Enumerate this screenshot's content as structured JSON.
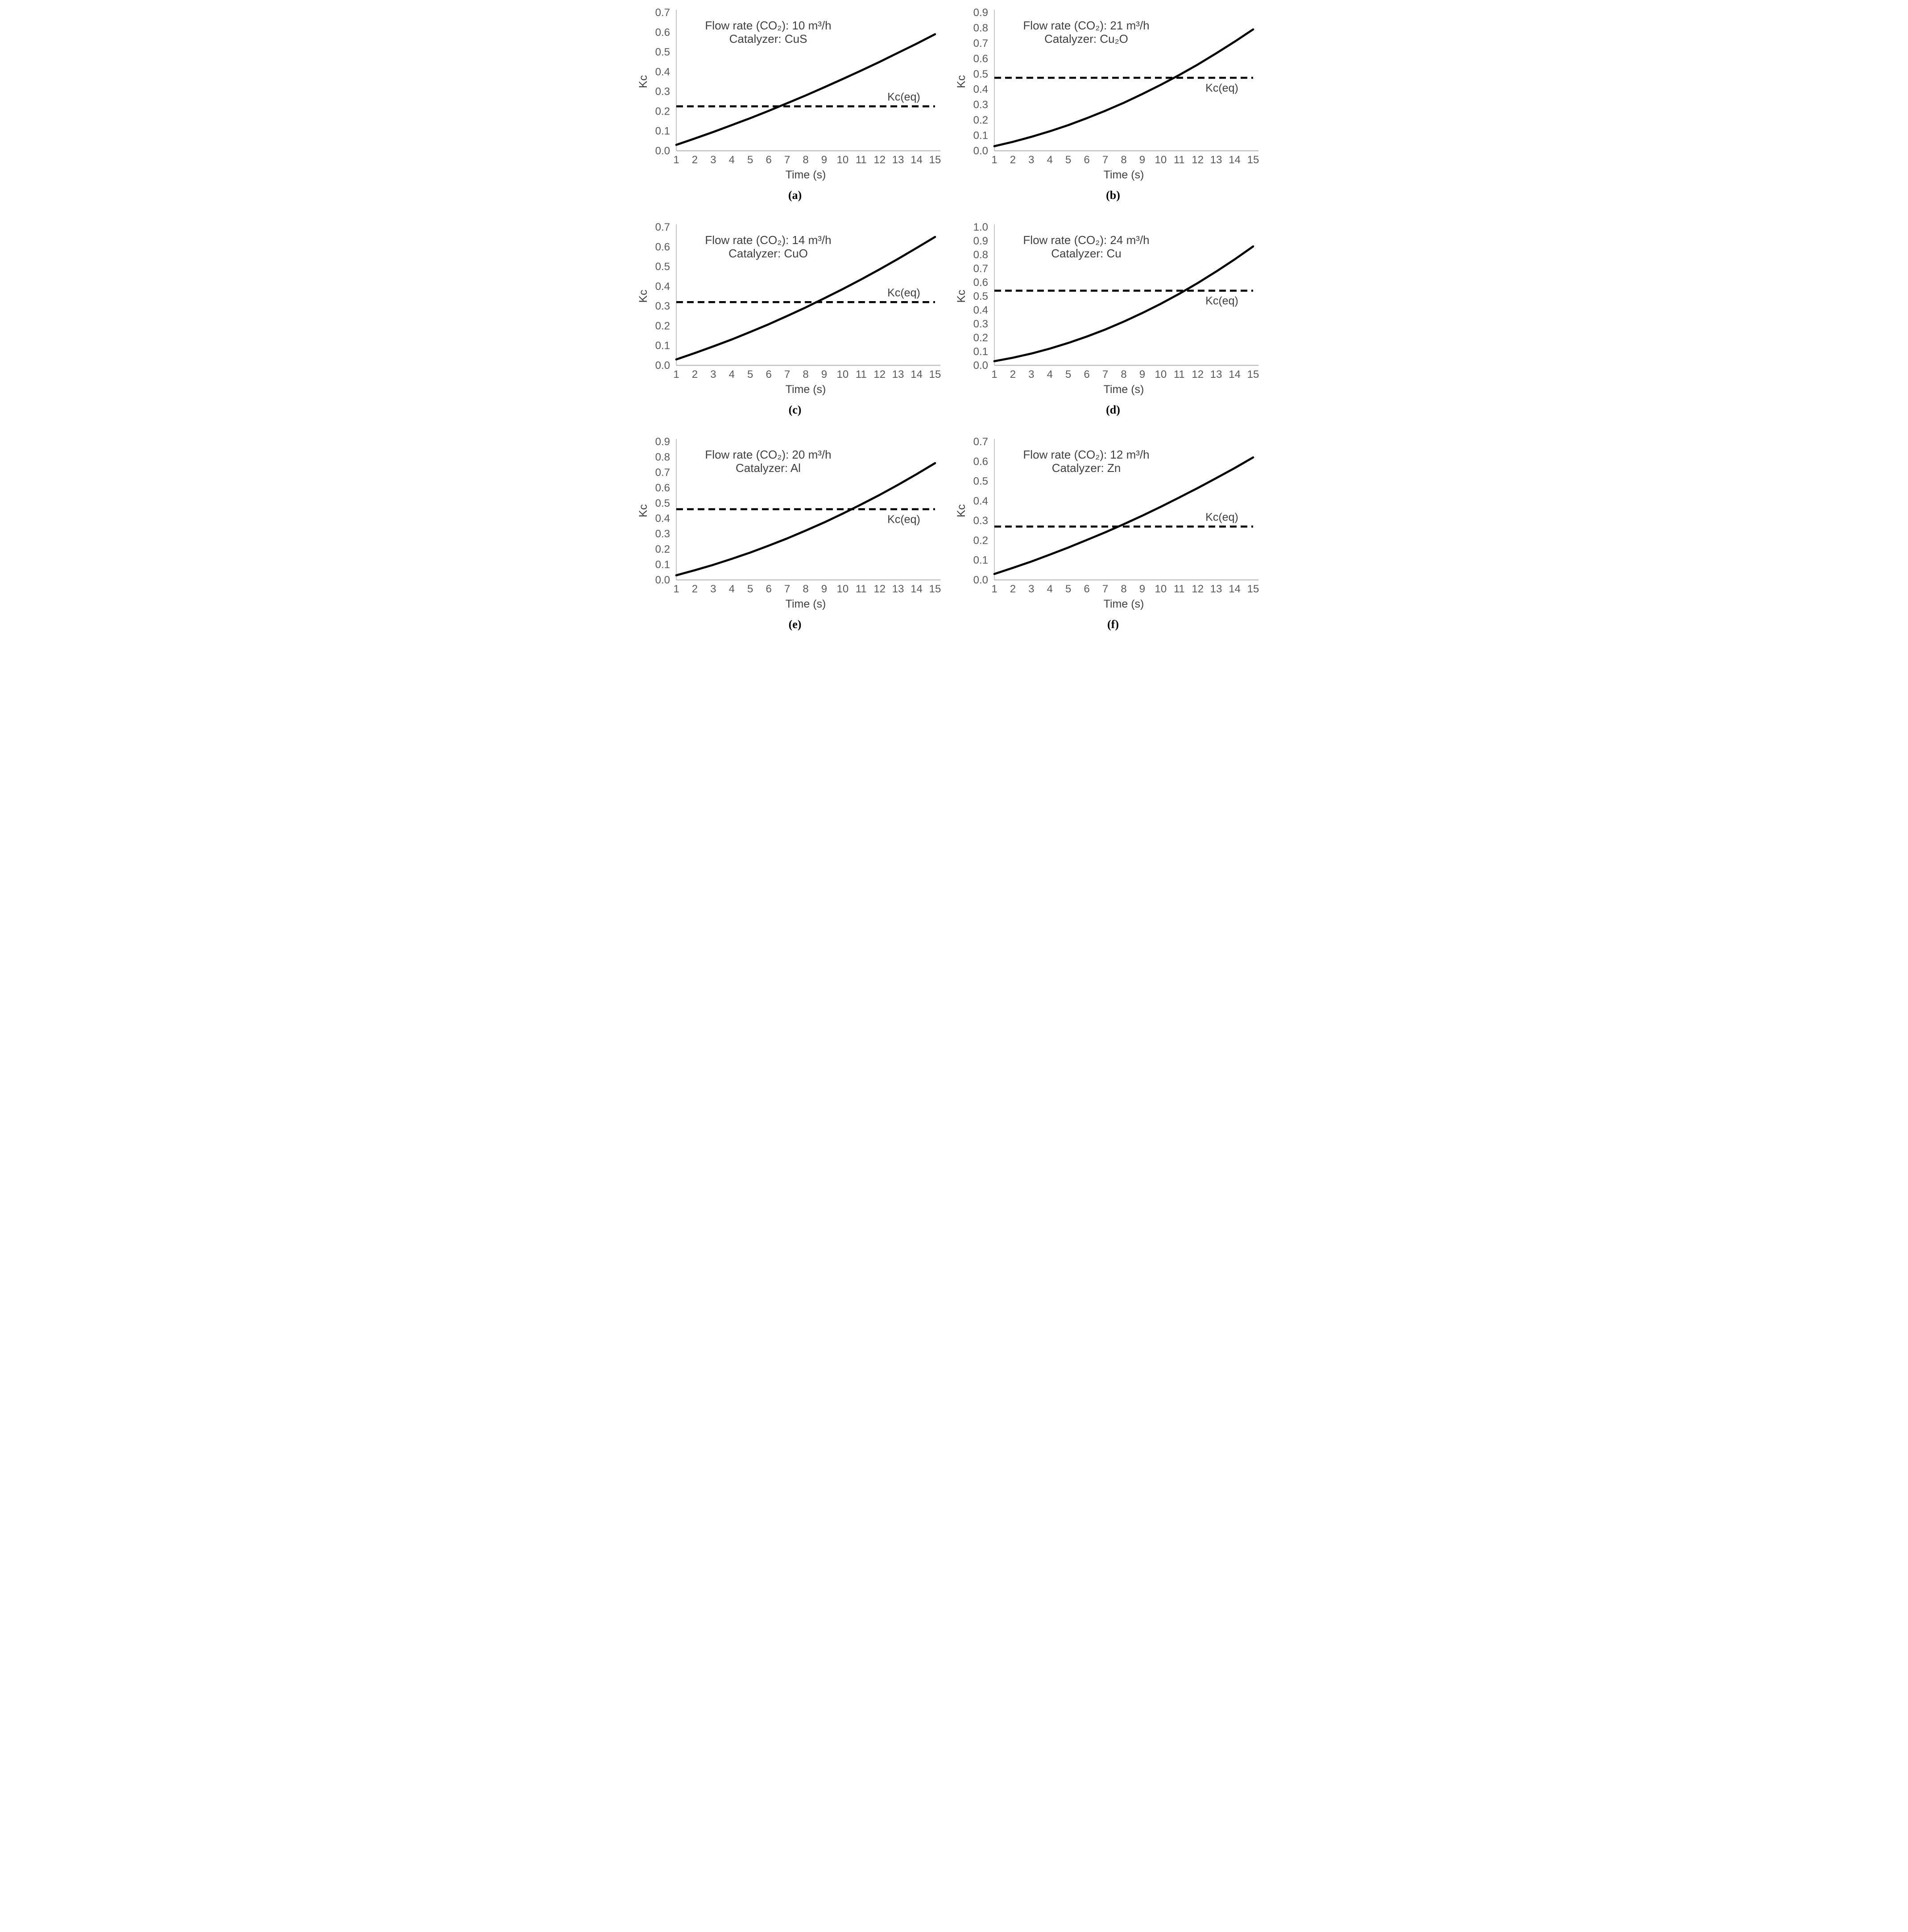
{
  "figure": {
    "layout": "3 rows x 2 columns",
    "description": "Kc versus time curves with equilibrium constant dashed line for six catalyzer/flow-rate conditions"
  },
  "style": {
    "background": "#ffffff",
    "curve_color": "#000000",
    "dashed_color": "#000000",
    "axis_line_color": "#bfbfbf",
    "tick_label_color": "#595959",
    "text_color": "#3f3f3f",
    "caption_color": "#000000"
  },
  "chart_data": [
    {
      "id": "a",
      "type": "line",
      "caption": "(a)",
      "annotation_line1": "Flow rate (CO₂): 10 m³/h",
      "annotation_line2": "Catalyzer: CuS",
      "flow_rate_m3_per_h": 10,
      "catalyzer": "CuS",
      "xlabel": "Time (s)",
      "ylabel": "Kc",
      "xlim": [
        1,
        15
      ],
      "ylim": [
        0,
        0.7
      ],
      "y_tick_step": 0.1,
      "x_ticks": [
        1,
        2,
        3,
        4,
        5,
        6,
        7,
        8,
        9,
        10,
        11,
        12,
        13,
        14,
        15
      ],
      "grid": false,
      "legend": false,
      "kc_eq_value": 0.225,
      "kc_eq_label": "Kc(eq)",
      "kc_eq_label_side": "above",
      "kc_eq_crossing_time_estimate": 6.6,
      "series": [
        {
          "name": "Kc",
          "style": "solid",
          "x": [
            1,
            2,
            3,
            4,
            5,
            6,
            7,
            8,
            9,
            10,
            11,
            12,
            13,
            14,
            15
          ],
          "y": [
            0.03,
            0.062,
            0.095,
            0.13,
            0.165,
            0.202,
            0.241,
            0.28,
            0.321,
            0.363,
            0.406,
            0.45,
            0.496,
            0.542,
            0.59
          ]
        },
        {
          "name": "Kc(eq)",
          "style": "dashed",
          "y_const": 0.225
        }
      ]
    },
    {
      "id": "b",
      "type": "line",
      "caption": "(b)",
      "annotation_line1": "Flow rate (CO₂): 21 m³/h",
      "annotation_line2": "Catalyzer: Cu₂O",
      "flow_rate_m3_per_h": 21,
      "catalyzer": "Cu₂O",
      "xlabel": "Time (s)",
      "ylabel": "Kc",
      "xlim": [
        1,
        15
      ],
      "ylim": [
        0,
        0.9
      ],
      "y_tick_step": 0.1,
      "x_ticks": [
        1,
        2,
        3,
        4,
        5,
        6,
        7,
        8,
        9,
        10,
        11,
        12,
        13,
        14,
        15
      ],
      "grid": false,
      "legend": false,
      "kc_eq_value": 0.475,
      "kc_eq_label": "Kc(eq)",
      "kc_eq_label_side": "below",
      "kc_eq_crossing_time_estimate": 10.7,
      "series": [
        {
          "name": "Kc",
          "style": "solid",
          "x": [
            1,
            2,
            3,
            4,
            5,
            6,
            7,
            8,
            9,
            10,
            11,
            12,
            13,
            14,
            15
          ],
          "y": [
            0.03,
            0.058,
            0.091,
            0.127,
            0.167,
            0.212,
            0.26,
            0.312,
            0.369,
            0.429,
            0.493,
            0.561,
            0.634,
            0.71,
            0.79
          ]
        },
        {
          "name": "Kc(eq)",
          "style": "dashed",
          "y_const": 0.475
        }
      ]
    },
    {
      "id": "c",
      "type": "line",
      "caption": "(c)",
      "annotation_line1": "Flow rate (CO₂): 14 m³/h",
      "annotation_line2": "Catalyzer: CuO",
      "flow_rate_m3_per_h": 14,
      "catalyzer": "CuO",
      "xlabel": "Time (s)",
      "ylabel": "Kc",
      "xlim": [
        1,
        15
      ],
      "ylim": [
        0,
        0.7
      ],
      "y_tick_step": 0.1,
      "x_ticks": [
        1,
        2,
        3,
        4,
        5,
        6,
        7,
        8,
        9,
        10,
        11,
        12,
        13,
        14,
        15
      ],
      "grid": false,
      "legend": false,
      "kc_eq_value": 0.32,
      "kc_eq_label": "Kc(eq)",
      "kc_eq_label_side": "above",
      "kc_eq_crossing_time_estimate": 8.6,
      "series": [
        {
          "name": "Kc",
          "style": "solid",
          "x": [
            1,
            2,
            3,
            4,
            5,
            6,
            7,
            8,
            9,
            10,
            11,
            12,
            13,
            14,
            15
          ],
          "y": [
            0.03,
            0.062,
            0.096,
            0.131,
            0.169,
            0.208,
            0.25,
            0.293,
            0.339,
            0.386,
            0.435,
            0.486,
            0.539,
            0.594,
            0.65
          ]
        },
        {
          "name": "Kc(eq)",
          "style": "dashed",
          "y_const": 0.32
        }
      ]
    },
    {
      "id": "d",
      "type": "line",
      "caption": "(d)",
      "annotation_line1": "Flow rate (CO₂): 24 m³/h",
      "annotation_line2": "Catalyzer: Cu",
      "flow_rate_m3_per_h": 24,
      "catalyzer": "Cu",
      "xlabel": "Time (s)",
      "ylabel": "Kc",
      "xlim": [
        1,
        15
      ],
      "ylim": [
        0,
        1.0
      ],
      "y_tick_step": 0.1,
      "x_ticks": [
        1,
        2,
        3,
        4,
        5,
        6,
        7,
        8,
        9,
        10,
        11,
        12,
        13,
        14,
        15
      ],
      "grid": false,
      "legend": false,
      "kc_eq_value": 0.54,
      "kc_eq_label": "Kc(eq)",
      "kc_eq_label_side": "below",
      "kc_eq_crossing_time_estimate": 11.3,
      "series": [
        {
          "name": "Kc",
          "style": "solid",
          "x": [
            1,
            2,
            3,
            4,
            5,
            6,
            7,
            8,
            9,
            10,
            11,
            12,
            13,
            14,
            15
          ],
          "y": [
            0.03,
            0.055,
            0.085,
            0.121,
            0.162,
            0.208,
            0.259,
            0.316,
            0.378,
            0.445,
            0.517,
            0.595,
            0.678,
            0.766,
            0.86
          ]
        },
        {
          "name": "Kc(eq)",
          "style": "dashed",
          "y_const": 0.54
        }
      ]
    },
    {
      "id": "e",
      "type": "line",
      "caption": "(e)",
      "annotation_line1": "Flow rate (CO₂): 20 m³/h",
      "annotation_line2": "Catalyzer: Al",
      "flow_rate_m3_per_h": 20,
      "catalyzer": "Al",
      "xlabel": "Time (s)",
      "ylabel": "Kc",
      "xlim": [
        1,
        15
      ],
      "ylim": [
        0,
        0.9
      ],
      "y_tick_step": 0.1,
      "x_ticks": [
        1,
        2,
        3,
        4,
        5,
        6,
        7,
        8,
        9,
        10,
        11,
        12,
        13,
        14,
        15
      ],
      "grid": false,
      "legend": false,
      "kc_eq_value": 0.46,
      "kc_eq_label": "Kc(eq)",
      "kc_eq_label_side": "below",
      "kc_eq_crossing_time_estimate": 10.5,
      "series": [
        {
          "name": "Kc",
          "style": "solid",
          "x": [
            1,
            2,
            3,
            4,
            5,
            6,
            7,
            8,
            9,
            10,
            11,
            12,
            13,
            14,
            15
          ],
          "y": [
            0.03,
            0.063,
            0.098,
            0.137,
            0.178,
            0.223,
            0.27,
            0.321,
            0.374,
            0.431,
            0.491,
            0.553,
            0.619,
            0.688,
            0.76
          ]
        },
        {
          "name": "Kc(eq)",
          "style": "dashed",
          "y_const": 0.46
        }
      ]
    },
    {
      "id": "f",
      "type": "line",
      "caption": "(f)",
      "annotation_line1": "Flow rate (CO₂): 12 m³/h",
      "annotation_line2": "Catalyzer: Zn",
      "flow_rate_m3_per_h": 12,
      "catalyzer": "Zn",
      "xlabel": "Time (s)",
      "ylabel": "Kc",
      "xlim": [
        1,
        15
      ],
      "ylim": [
        0,
        0.7
      ],
      "y_tick_step": 0.1,
      "x_ticks": [
        1,
        2,
        3,
        4,
        5,
        6,
        7,
        8,
        9,
        10,
        11,
        12,
        13,
        14,
        15
      ],
      "grid": false,
      "legend": false,
      "kc_eq_value": 0.27,
      "kc_eq_label": "Kc(eq)",
      "kc_eq_label_side": "above",
      "kc_eq_crossing_time_estimate": 7.7,
      "series": [
        {
          "name": "Kc",
          "style": "solid",
          "x": [
            1,
            2,
            3,
            4,
            5,
            6,
            7,
            8,
            9,
            10,
            11,
            12,
            13,
            14,
            15
          ],
          "y": [
            0.03,
            0.061,
            0.093,
            0.128,
            0.164,
            0.202,
            0.241,
            0.282,
            0.325,
            0.37,
            0.417,
            0.465,
            0.515,
            0.566,
            0.62
          ]
        },
        {
          "name": "Kc(eq)",
          "style": "dashed",
          "y_const": 0.27
        }
      ]
    }
  ]
}
